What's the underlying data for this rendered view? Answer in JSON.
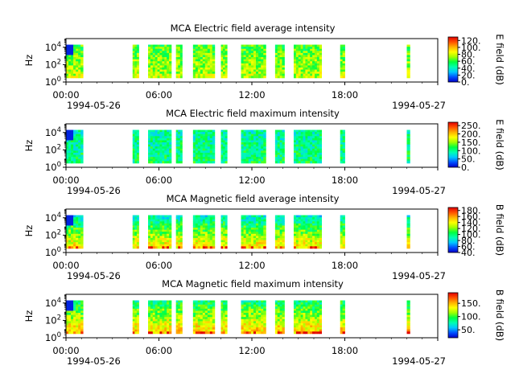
{
  "chart_data": [
    {
      "type": "heatmap",
      "title": "MCA  Electric field average intensity",
      "ylabel": "Hz",
      "y_scale": "log",
      "ylim": [
        1,
        100000
      ],
      "y_ticks": [
        {
          "base": "10",
          "exp": "0"
        },
        {
          "base": "10",
          "exp": "2"
        },
        {
          "base": "10",
          "exp": "4"
        }
      ],
      "x_ticks": [
        "00:00",
        "06:00",
        "12:00",
        "18:00",
        ""
      ],
      "x_start_date": "1994-05-26",
      "x_end_date": "1994-05-27",
      "xlim": [
        "1994-05-26 00:00",
        "1994-05-27 00:00"
      ],
      "colorbar": {
        "label": "E field (dB)",
        "range": [
          0,
          130
        ],
        "ticks": [
          "0.",
          "20.",
          "40.",
          "60.",
          "80.",
          "100.",
          "120."
        ],
        "ticks_values": [
          0,
          20,
          40,
          60,
          80,
          100,
          120
        ]
      },
      "data_segments_hours": [
        [
          0.0,
          1.1
        ],
        [
          4.3,
          4.7
        ],
        [
          5.3,
          6.8
        ],
        [
          7.1,
          7.5
        ],
        [
          8.2,
          9.6
        ],
        [
          10.0,
          10.4
        ],
        [
          11.3,
          12.9
        ],
        [
          13.5,
          14.1
        ],
        [
          14.7,
          16.5
        ],
        [
          17.7,
          18.0
        ],
        [
          22.0,
          22.2
        ]
      ],
      "base_intensity": 70
    },
    {
      "type": "heatmap",
      "title": "MCA  Electric field maximum intensity",
      "ylabel": "Hz",
      "y_scale": "log",
      "ylim": [
        1,
        100000
      ],
      "y_ticks": [
        {
          "base": "10",
          "exp": "0"
        },
        {
          "base": "10",
          "exp": "2"
        },
        {
          "base": "10",
          "exp": "4"
        }
      ],
      "x_ticks": [
        "00:00",
        "06:00",
        "12:00",
        "18:00",
        ""
      ],
      "x_start_date": "1994-05-26",
      "x_end_date": "1994-05-27",
      "xlim": [
        "1994-05-26 00:00",
        "1994-05-27 00:00"
      ],
      "colorbar": {
        "label": "E field (dB)",
        "range": [
          0,
          270
        ],
        "ticks": [
          "0.",
          "50.",
          "100.",
          "150.",
          "200.",
          "250."
        ],
        "ticks_values": [
          0,
          50,
          100,
          150,
          200,
          250
        ]
      },
      "data_segments_hours": [
        [
          0.0,
          1.1
        ],
        [
          4.3,
          4.7
        ],
        [
          5.3,
          6.8
        ],
        [
          7.1,
          7.5
        ],
        [
          8.2,
          9.6
        ],
        [
          10.0,
          10.4
        ],
        [
          11.3,
          12.9
        ],
        [
          13.5,
          14.1
        ],
        [
          14.7,
          16.5
        ],
        [
          17.7,
          18.0
        ],
        [
          22.0,
          22.2
        ]
      ],
      "base_intensity": 100
    },
    {
      "type": "heatmap",
      "title": "MCA  Magnetic field average intensity",
      "ylabel": "Hz",
      "y_scale": "log",
      "ylim": [
        1,
        100000
      ],
      "y_ticks": [
        {
          "base": "10",
          "exp": "0"
        },
        {
          "base": "10",
          "exp": "2"
        },
        {
          "base": "10",
          "exp": "4"
        }
      ],
      "x_ticks": [
        "00:00",
        "06:00",
        "12:00",
        "18:00",
        ""
      ],
      "x_start_date": "1994-05-26",
      "x_end_date": "1994-05-27",
      "xlim": [
        "1994-05-26 00:00",
        "1994-05-27 00:00"
      ],
      "colorbar": {
        "label": "B field (dB)",
        "range": [
          40,
          190
        ],
        "ticks": [
          "40.",
          "60.",
          "80.",
          "100.",
          "120.",
          "140.",
          "160.",
          "180."
        ],
        "ticks_values": [
          40,
          60,
          80,
          100,
          120,
          140,
          160,
          180
        ]
      },
      "data_segments_hours": [
        [
          0.0,
          1.1
        ],
        [
          4.3,
          4.7
        ],
        [
          5.3,
          6.8
        ],
        [
          7.1,
          7.5
        ],
        [
          8.2,
          9.6
        ],
        [
          10.0,
          10.4
        ],
        [
          11.3,
          12.9
        ],
        [
          13.5,
          14.1
        ],
        [
          14.7,
          16.5
        ],
        [
          17.7,
          18.0
        ],
        [
          22.0,
          22.2
        ]
      ],
      "base_intensity": 110
    },
    {
      "type": "heatmap",
      "title": "MCA  Magnetic field maximum intensity",
      "ylabel": "Hz",
      "y_scale": "log",
      "ylim": [
        1,
        100000
      ],
      "y_ticks": [
        {
          "base": "10",
          "exp": "0"
        },
        {
          "base": "10",
          "exp": "2"
        },
        {
          "base": "10",
          "exp": "4"
        }
      ],
      "x_ticks": [
        "00:00",
        "06:00",
        "12:00",
        "18:00",
        ""
      ],
      "x_start_date": "1994-05-26",
      "x_end_date": "1994-05-27",
      "xlim": [
        "1994-05-26 00:00",
        "1994-05-27 00:00"
      ],
      "colorbar": {
        "label": "B field (dB)",
        "range": [
          20,
          190
        ],
        "ticks": [
          "50.",
          "100.",
          "150."
        ],
        "ticks_values": [
          50,
          100,
          150
        ]
      },
      "data_segments_hours": [
        [
          0.0,
          1.1
        ],
        [
          4.3,
          4.7
        ],
        [
          5.3,
          6.8
        ],
        [
          7.1,
          7.5
        ],
        [
          8.2,
          9.6
        ],
        [
          10.0,
          10.4
        ],
        [
          11.3,
          12.9
        ],
        [
          13.5,
          14.1
        ],
        [
          14.7,
          16.5
        ],
        [
          17.7,
          18.0
        ],
        [
          22.0,
          22.2
        ]
      ],
      "base_intensity": 110
    }
  ],
  "colormap": [
    "#0000c8",
    "#0050ff",
    "#00c8ff",
    "#00ffb0",
    "#00ff40",
    "#a0ff00",
    "#ffff00",
    "#ffb000",
    "#ff5000",
    "#e00000"
  ]
}
